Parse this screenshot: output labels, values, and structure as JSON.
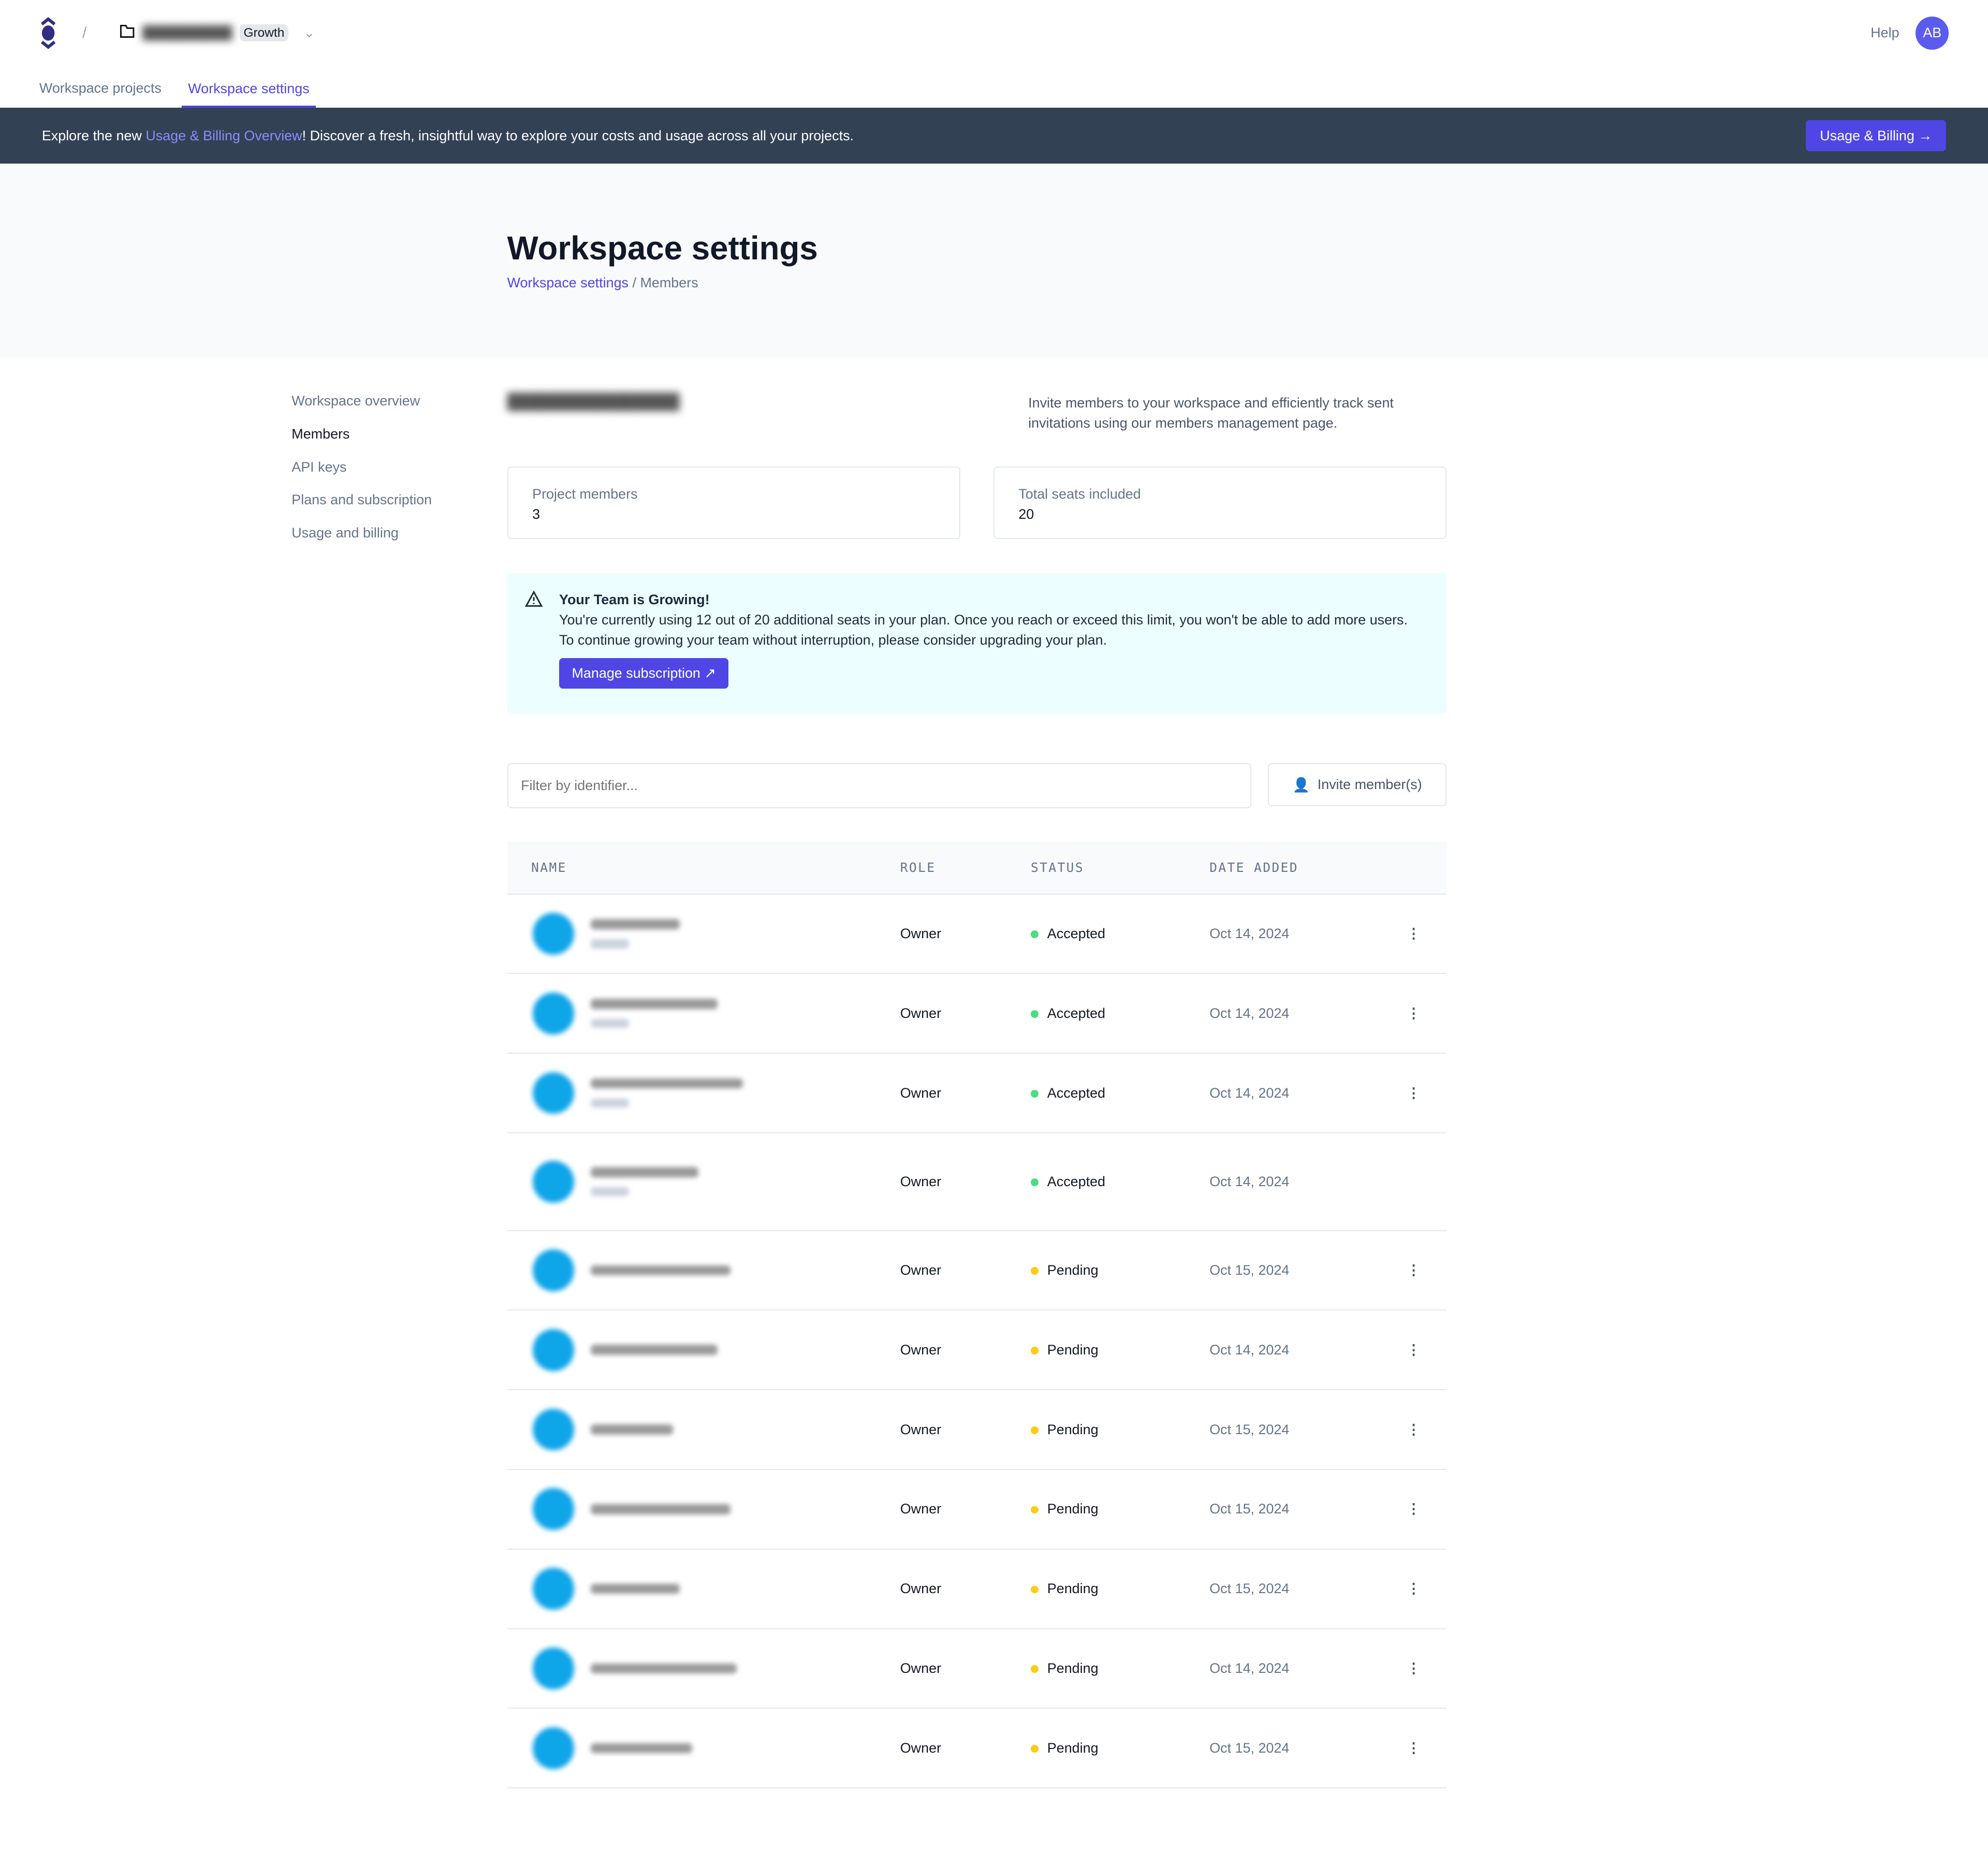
{
  "header": {
    "plan_badge": "Growth",
    "help": "Help",
    "avatar_initials": "AB"
  },
  "tabs": [
    {
      "label": "Workspace projects"
    },
    {
      "label": "Workspace settings"
    }
  ],
  "banner": {
    "pre": "Explore the new ",
    "link": "Usage & Billing Overview",
    "post": "! Discover a fresh, insightful way to explore your costs and usage across all your projects.",
    "button": "Usage & Billing"
  },
  "page": {
    "title": "Workspace settings",
    "crumb_link": "Workspace settings",
    "crumb_sep": " / ",
    "crumb_current": "Members"
  },
  "sidebar": {
    "items": [
      {
        "label": "Workspace overview"
      },
      {
        "label": "Members"
      },
      {
        "label": "API keys"
      },
      {
        "label": "Plans and subscription"
      },
      {
        "label": "Usage and billing"
      }
    ]
  },
  "intro": {
    "description": "Invite members to your workspace and efficiently track sent invitations using our members management page."
  },
  "stats": [
    {
      "label": "Project members",
      "value": "3"
    },
    {
      "label": "Total seats included",
      "value": "20"
    }
  ],
  "alert": {
    "title": "Your Team is Growing!",
    "body": "You're currently using 12 out of 20 additional seats in your plan. Once you reach or exceed this limit, you won't be able to add more users. To continue growing your team without interruption, please consider upgrading your plan.",
    "button": "Manage subscription"
  },
  "filter": {
    "placeholder": "Filter by identifier...",
    "invite": "Invite member(s)"
  },
  "table": {
    "headers": [
      "NAME",
      "ROLE",
      "STATUS",
      "DATE ADDED"
    ],
    "rows": [
      {
        "role": "Owner",
        "status": "Accepted",
        "date": "Oct 14, 2024",
        "menu": true
      },
      {
        "role": "Owner",
        "status": "Accepted",
        "date": "Oct 14, 2024",
        "menu": true
      },
      {
        "role": "Owner",
        "status": "Accepted",
        "date": "Oct 14, 2024",
        "menu": true
      },
      {
        "role": "Owner",
        "status": "Accepted",
        "date": "Oct 14, 2024",
        "menu": false
      },
      {
        "role": "Owner",
        "status": "Pending",
        "date": "Oct 15, 2024",
        "menu": true
      },
      {
        "role": "Owner",
        "status": "Pending",
        "date": "Oct 14, 2024",
        "menu": true
      },
      {
        "role": "Owner",
        "status": "Pending",
        "date": "Oct 15, 2024",
        "menu": true
      },
      {
        "role": "Owner",
        "status": "Pending",
        "date": "Oct 15, 2024",
        "menu": true
      },
      {
        "role": "Owner",
        "status": "Pending",
        "date": "Oct 15, 2024",
        "menu": true
      },
      {
        "role": "Owner",
        "status": "Pending",
        "date": "Oct 14, 2024",
        "menu": true
      },
      {
        "role": "Owner",
        "status": "Pending",
        "date": "Oct 15, 2024",
        "menu": true
      }
    ]
  },
  "colors": {
    "accent": "#4f46e5",
    "accepted": "#4ade80",
    "pending": "#facc15",
    "avatar": "#0ea5e9",
    "banner": "#334155"
  }
}
